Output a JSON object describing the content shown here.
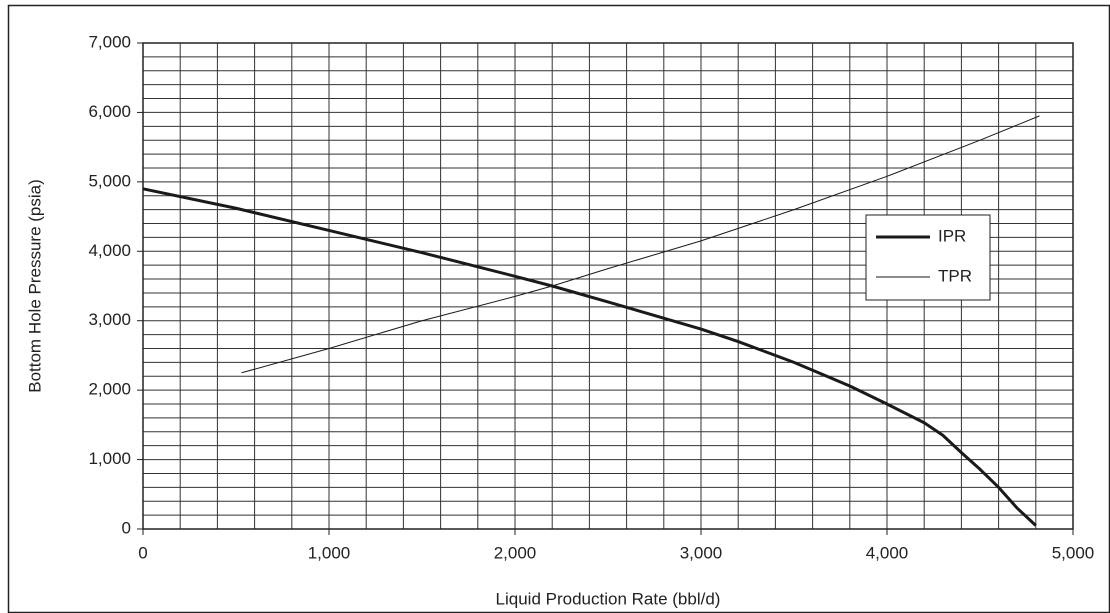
{
  "chart_data": {
    "type": "line",
    "x_label": "Liquid Production Rate (bbl/d)",
    "y_label": "Bottom Hole Pressure (psia)",
    "xlim": [
      0,
      5000
    ],
    "ylim": [
      0,
      7000
    ],
    "xticks": [
      0,
      {
        "value": 1000,
        "label": "1,000"
      },
      {
        "value": 2000,
        "label": "2,000"
      },
      {
        "value": 3000,
        "label": "3,000"
      },
      {
        "value": 4000,
        "label": "4,000"
      },
      {
        "value": 5000,
        "label": "5,000"
      }
    ],
    "yticks": [
      0,
      {
        "value": 1000,
        "label": "1,000"
      },
      {
        "value": 2000,
        "label": "2,000"
      },
      {
        "value": 3000,
        "label": "3,000"
      },
      {
        "value": 4000,
        "label": "4,000"
      },
      {
        "value": 5000,
        "label": "5,000"
      },
      {
        "value": 6000,
        "label": "6,000"
      },
      {
        "value": 7000,
        "label": "7,000"
      }
    ],
    "grid": true,
    "grid_step": 200,
    "legend": "right",
    "series": [
      {
        "name": "IPR",
        "color": "#1a1a1a",
        "width": 3,
        "x": [
          0,
          500,
          1000,
          1500,
          2000,
          2200,
          2500,
          3000,
          3200,
          3500,
          3800,
          4000,
          4200,
          4300,
          4400,
          4500,
          4600,
          4700,
          4800
        ],
        "values": [
          4900,
          4620,
          4300,
          3980,
          3640,
          3500,
          3270,
          2880,
          2700,
          2400,
          2060,
          1800,
          1530,
          1350,
          1100,
          860,
          600,
          300,
          50
        ]
      },
      {
        "name": "TPR",
        "color": "#1a1a1a",
        "width": 1,
        "x": [
          530,
          1000,
          1500,
          2000,
          2200,
          2500,
          3000,
          3500,
          4000,
          4500,
          4820
        ],
        "values": [
          2250,
          2600,
          3000,
          3350,
          3500,
          3750,
          4150,
          4600,
          5080,
          5600,
          5950
        ]
      }
    ]
  }
}
